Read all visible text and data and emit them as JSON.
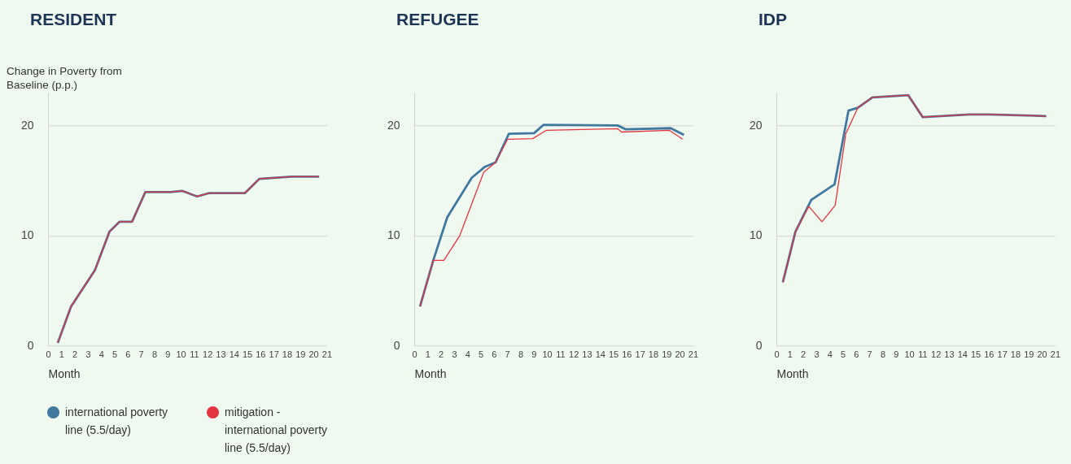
{
  "chart_data": [
    {
      "type": "line",
      "title": "RESIDENT",
      "ylabel": "Change in Poverty from Baseline (p.p.)",
      "xlabel": "Month",
      "xlim": [
        0,
        21
      ],
      "xticks": [
        0,
        1,
        2,
        3,
        4,
        5,
        6,
        7,
        8,
        9,
        10,
        11,
        12,
        13,
        14,
        15,
        16,
        17,
        18,
        19,
        20,
        21
      ],
      "ylim": [
        0,
        23
      ],
      "yticks": [
        0,
        10,
        20
      ],
      "grid": "y",
      "legend": "bottom",
      "series": [
        {
          "name": "international poverty line (5.5/day)",
          "color": "#41789f",
          "x": [
            0.7,
            1.7,
            3.5,
            4.6,
            5.35,
            6.3,
            7.3,
            9.2,
            10.1,
            11.2,
            12.1,
            14.8,
            15.9,
            18.3,
            20.4
          ],
          "values": [
            0.3,
            3.6,
            6.9,
            10.4,
            11.3,
            11.3,
            14.0,
            14.0,
            14.1,
            13.6,
            13.9,
            13.9,
            15.2,
            15.4,
            15.4
          ]
        },
        {
          "name": "mitigation - international poverty line (5.5/day)",
          "color": "#e3343f",
          "x": [
            0.7,
            1.7,
            3.5,
            4.6,
            5.35,
            6.3,
            7.3,
            9.2,
            10.1,
            11.2,
            12.1,
            14.8,
            15.9,
            18.3,
            20.4
          ],
          "values": [
            0.3,
            3.6,
            6.9,
            10.4,
            11.3,
            11.3,
            14.0,
            14.0,
            14.1,
            13.6,
            13.9,
            13.9,
            15.2,
            15.4,
            15.4
          ]
        }
      ]
    },
    {
      "type": "line",
      "title": "REFUGEE",
      "xlabel": "Month",
      "xlim": [
        0,
        21
      ],
      "xticks": [
        0,
        1,
        2,
        3,
        4,
        5,
        6,
        7,
        8,
        9,
        10,
        11,
        12,
        13,
        14,
        15,
        16,
        17,
        18,
        19,
        20,
        21
      ],
      "ylim": [
        0,
        23
      ],
      "yticks": [
        0,
        10,
        20
      ],
      "grid": "y",
      "series": [
        {
          "color": "#41789f",
          "x": [
            0.4,
            1.4,
            2.45,
            4.3,
            5.3,
            6.1,
            7.1,
            9.0,
            9.7,
            15.3,
            15.9,
            19.3,
            20.3
          ],
          "values": [
            3.6,
            7.8,
            11.7,
            15.3,
            16.3,
            16.7,
            19.3,
            19.35,
            20.1,
            20.05,
            19.7,
            19.8,
            19.2
          ]
        },
        {
          "color": "#e3343f",
          "x": [
            0.4,
            1.4,
            2.2,
            3.4,
            5.2,
            6.1,
            7.0,
            8.9,
            9.9,
            15.3,
            15.6,
            19.2,
            20.2
          ],
          "values": [
            3.6,
            7.8,
            7.8,
            10.05,
            15.8,
            16.7,
            18.8,
            18.85,
            19.6,
            19.75,
            19.45,
            19.6,
            18.8
          ]
        }
      ]
    },
    {
      "type": "line",
      "title": "IDP",
      "xlabel": "Month",
      "xlim": [
        0,
        21
      ],
      "xticks": [
        0,
        1,
        2,
        3,
        4,
        5,
        6,
        7,
        8,
        9,
        10,
        11,
        12,
        13,
        14,
        15,
        16,
        17,
        18,
        19,
        20,
        21
      ],
      "ylim": [
        0,
        23
      ],
      "yticks": [
        0,
        10,
        20
      ],
      "grid": "y",
      "series": [
        {
          "color": "#41789f",
          "x": [
            0.45,
            1.4,
            2.6,
            4.35,
            5.4,
            6.1,
            7.2,
            9.9,
            11.0,
            14.5,
            16.0,
            20.3
          ],
          "values": [
            5.8,
            10.4,
            13.3,
            14.7,
            21.4,
            21.65,
            22.6,
            22.8,
            20.8,
            21.05,
            21.05,
            20.9
          ]
        },
        {
          "color": "#e3343f",
          "x": [
            0.45,
            1.4,
            2.4,
            3.4,
            4.4,
            5.2,
            6.1,
            7.2,
            9.9,
            11.0,
            14.5,
            16.0,
            20.3
          ],
          "values": [
            5.8,
            10.4,
            12.7,
            11.3,
            12.8,
            19.3,
            21.65,
            22.6,
            22.8,
            20.8,
            21.05,
            21.05,
            20.9
          ]
        }
      ]
    }
  ]
}
